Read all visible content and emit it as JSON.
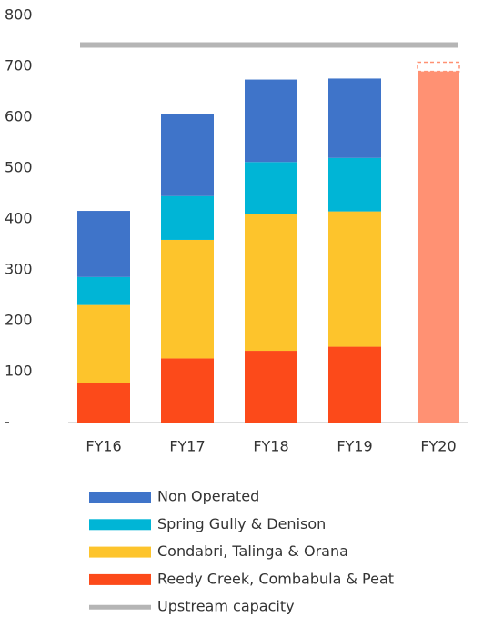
{
  "chart_data": {
    "type": "stacked_bar",
    "categories": [
      "FY16",
      "FY17",
      "FY18",
      "FY19",
      "FY20"
    ],
    "series": [
      {
        "name": "Reedy Creek, Combabula & Peat",
        "color": "#fc4a1a",
        "values": [
          77,
          126,
          141,
          149,
          null
        ]
      },
      {
        "name": "Condabri, Talinga & Orana",
        "color": "#fdc42c",
        "values": [
          154,
          233,
          268,
          266,
          null
        ]
      },
      {
        "name": "Spring Gully & Denison",
        "color": "#00b5d6",
        "values": [
          55,
          86,
          103,
          105,
          null
        ]
      },
      {
        "name": "Non Operated",
        "color": "#3f74c9",
        "values": [
          130,
          162,
          162,
          156,
          null
        ]
      }
    ],
    "fy20_bar": {
      "category": 4,
      "value": 690,
      "dashed_top": 708,
      "color": "#ff9173"
    },
    "reference_line": {
      "name": "Upstream capacity",
      "value": 742,
      "color": "#b5b5b5"
    },
    "ylim": [
      0,
      800
    ],
    "yticks": [
      {
        "value": 0,
        "label": "-"
      },
      100,
      200,
      300,
      400,
      500,
      600,
      700,
      800
    ],
    "grid": false
  }
}
